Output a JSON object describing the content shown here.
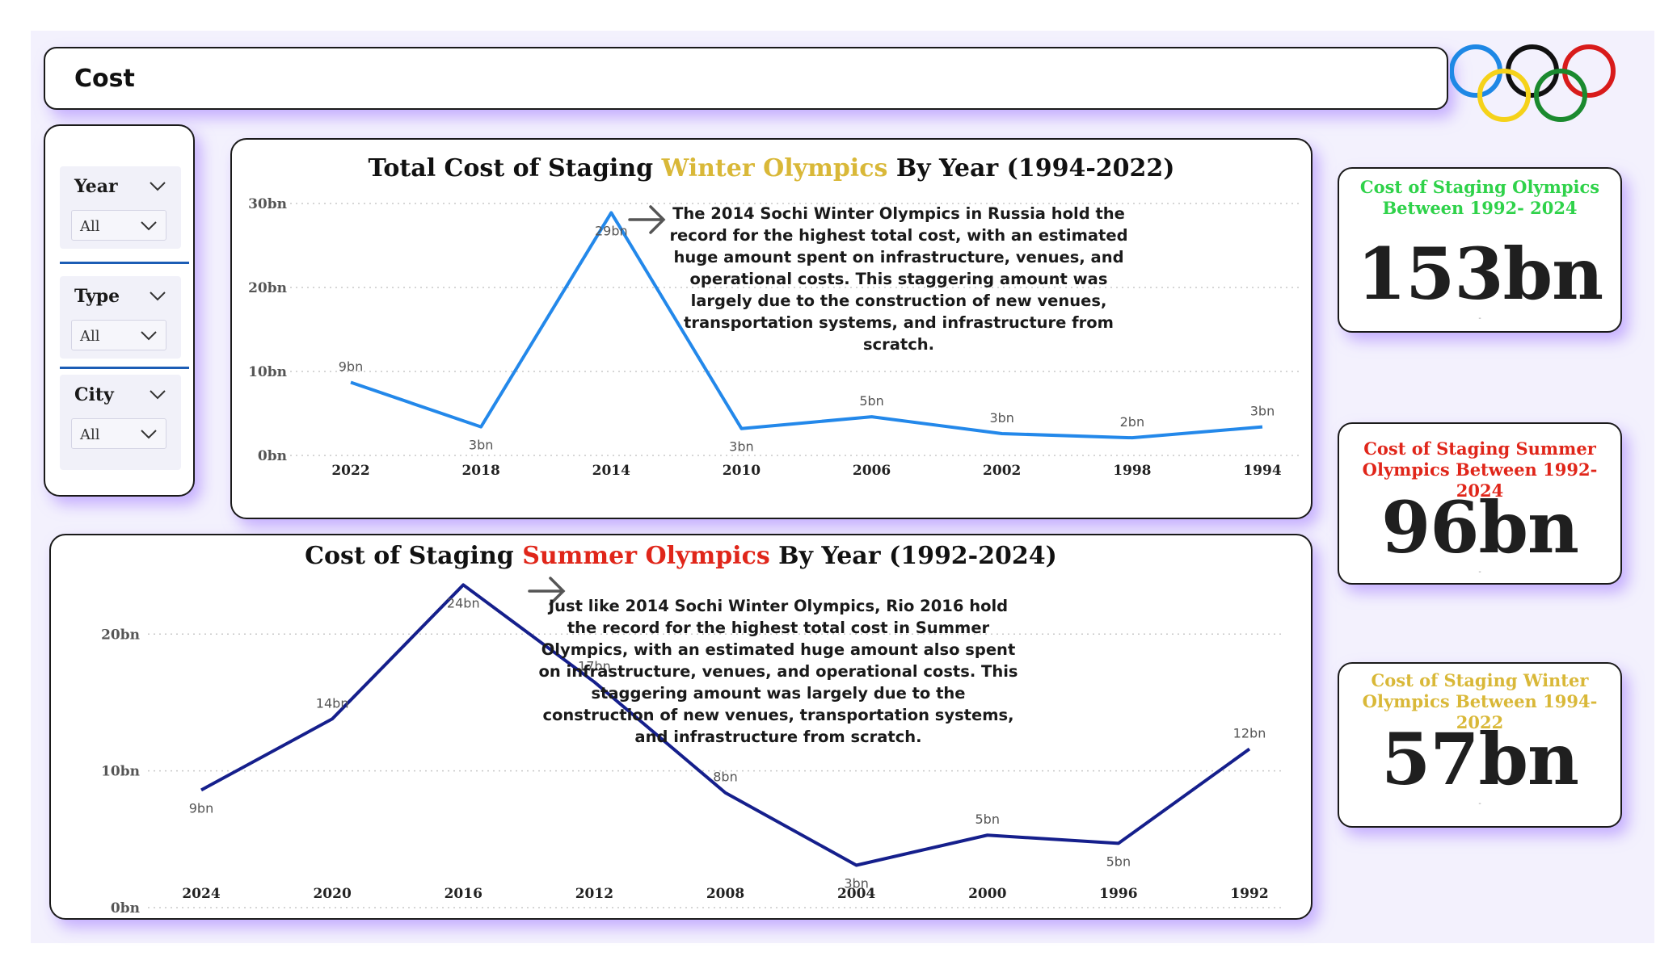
{
  "page": {
    "title": "Cost",
    "colors": {
      "winter_accent": "#d9b838",
      "summer_accent": "#e0261a",
      "total_accent": "#2fd24a",
      "winter_line": "#2388ea",
      "summer_line": "#151f8c",
      "card_glow": "#a078ff"
    },
    "logo": "olympic-rings"
  },
  "slicers": [
    {
      "label": "Year",
      "value": "All"
    },
    {
      "label": "Type",
      "value": "All"
    },
    {
      "label": "City",
      "value": "All"
    }
  ],
  "winter": {
    "title_pre": "Total Cost of Staging ",
    "title_highlight": "Winter Olympics",
    "title_post": " By Year (1994-2022)",
    "annotation": "The 2014 Sochi Winter Olympics in Russia hold the record for the highest total cost, with an estimated huge amount spent on infrastructure, venues, and operational costs. This staggering amount was largely due to the construction of new venues, transportation systems, and infrastructure from scratch."
  },
  "summer": {
    "title_pre": "Cost of Staging ",
    "title_highlight": "Summer Olympics",
    "title_post": " By Year (1992-2024)",
    "annotation": "Just like 2014 Sochi Winter Olympics, Rio 2016 hold the record for the highest total cost in Summer Olympics, with an estimated huge amount also spent on infrastructure, venues, and operational costs. This staggering amount was largely due to the construction of new venues, transportation systems, and infrastructure from scratch."
  },
  "chart_data": [
    {
      "type": "line",
      "id": "winter",
      "categories": [
        "2022",
        "2018",
        "2014",
        "2010",
        "2006",
        "2002",
        "1998",
        "1994"
      ],
      "values": [
        8.7,
        3.4,
        28.9,
        3.2,
        4.6,
        2.6,
        2.1,
        3.4
      ],
      "labels": [
        "9bn",
        "3bn",
        "29bn",
        "3bn",
        "5bn",
        "3bn",
        "2bn",
        "3bn"
      ],
      "label_pos": [
        "above",
        "below",
        "below",
        "below",
        "above",
        "above",
        "above",
        "above"
      ],
      "ylim": [
        0,
        30
      ],
      "yticks": [
        0,
        10,
        20,
        30
      ],
      "ytick_labels": [
        "0bn",
        "10bn",
        "20bn",
        "30bn"
      ],
      "grid": true,
      "color": "#2388ea"
    },
    {
      "type": "line",
      "id": "summer",
      "categories": [
        "2024",
        "2020",
        "2016",
        "2012",
        "2008",
        "2004",
        "2000",
        "1996",
        "1992"
      ],
      "values": [
        8.6,
        13.8,
        23.6,
        16.5,
        8.4,
        3.1,
        5.3,
        4.7,
        11.6
      ],
      "labels": [
        "9bn",
        "14bn",
        "24bn",
        "17bn",
        "8bn",
        "3bn",
        "5bn",
        "5bn",
        "12bn"
      ],
      "label_pos": [
        "below",
        "above",
        "below",
        "above",
        "above",
        "below",
        "above",
        "below",
        "above"
      ],
      "ylim": [
        0,
        25
      ],
      "yticks": [
        0,
        10,
        20
      ],
      "ytick_labels": [
        "0bn",
        "10bn",
        "20bn"
      ],
      "grid": true,
      "color": "#151f8c"
    }
  ],
  "kpis": [
    {
      "id": "total",
      "title_line1": "Cost of Staging  Olympics",
      "title_line2": "Between 1992- 2024",
      "value": "153bn",
      "color": "#2fd24a",
      "footnote": "-"
    },
    {
      "id": "summer",
      "title_line1": "Cost of Staging  Summer",
      "title_line2": "Olympics Between 1992- 2024",
      "value": "96bn",
      "color": "#e0261a",
      "footnote": "-"
    },
    {
      "id": "winter",
      "title_line1": "Cost of Staging  Winter",
      "title_line2": "Olympics Between 1994- 2022",
      "value": "57bn",
      "color": "#d9b838",
      "footnote": "-"
    }
  ]
}
